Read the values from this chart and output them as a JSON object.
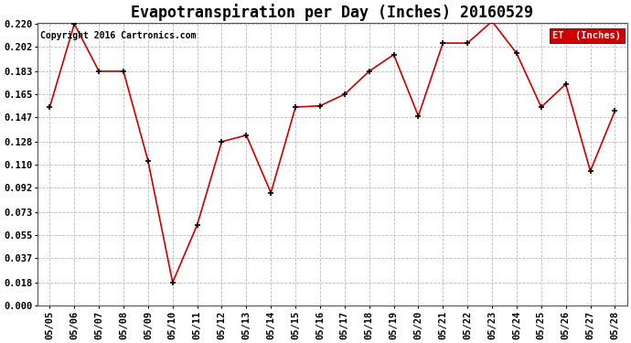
{
  "title": "Evapotranspiration per Day (Inches) 20160529",
  "copyright_text": "Copyright 2016 Cartronics.com",
  "legend_label": "ET  (Inches)",
  "x_labels": [
    "05/05",
    "05/06",
    "05/07",
    "05/08",
    "05/09",
    "05/10",
    "05/11",
    "05/12",
    "05/13",
    "05/14",
    "05/15",
    "05/16",
    "05/17",
    "05/18",
    "05/19",
    "05/20",
    "05/21",
    "05/22",
    "05/23",
    "05/24",
    "05/25",
    "05/26",
    "05/27",
    "05/28"
  ],
  "y_values": [
    0.155,
    0.22,
    0.183,
    0.183,
    0.113,
    0.018,
    0.063,
    0.128,
    0.133,
    0.088,
    0.155,
    0.156,
    0.165,
    0.183,
    0.196,
    0.148,
    0.205,
    0.205,
    0.222,
    0.197,
    0.155,
    0.173,
    0.105,
    0.152
  ],
  "line_color": "#cc0000",
  "marker_color": "#000000",
  "legend_bg": "#cc0000",
  "legend_text_color": "#ffffff",
  "ylim_min": 0.0,
  "ylim_max": 0.22,
  "yticks": [
    0.0,
    0.018,
    0.037,
    0.055,
    0.073,
    0.092,
    0.11,
    0.128,
    0.147,
    0.165,
    0.183,
    0.202,
    0.22
  ],
  "background_color": "#ffffff",
  "grid_color": "#bbbbbb",
  "title_fontsize": 12,
  "tick_fontsize": 7.5,
  "copyright_fontsize": 7
}
